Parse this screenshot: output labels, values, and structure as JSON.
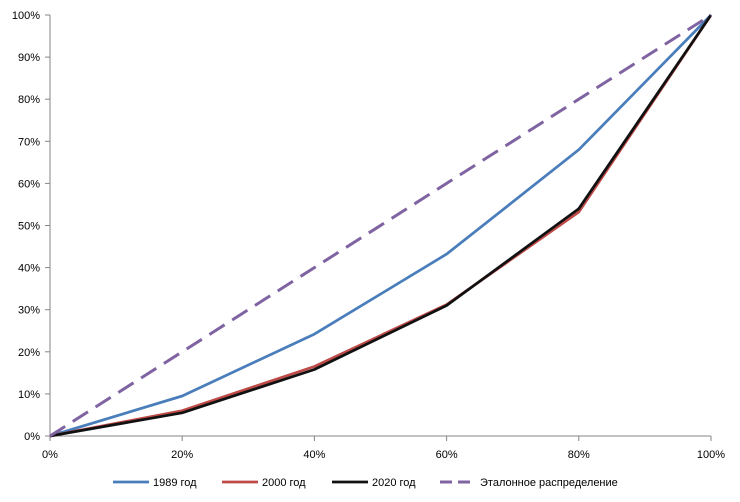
{
  "chart_data": {
    "type": "line",
    "title": "",
    "xlabel": "",
    "ylabel": "",
    "x": [
      0,
      20,
      40,
      60,
      80,
      100
    ],
    "x_tick_labels": [
      "0%",
      "20%",
      "40%",
      "60%",
      "80%",
      "100%"
    ],
    "y_tick_labels": [
      "0%",
      "10%",
      "20%",
      "30%",
      "40%",
      "50%",
      "60%",
      "70%",
      "80%",
      "90%",
      "100%"
    ],
    "xlim": [
      0,
      100
    ],
    "ylim": [
      0,
      100
    ],
    "grid": false,
    "legend_position": "bottom",
    "series": [
      {
        "name": "1989 год",
        "color": "#4a7ebb",
        "dash": "solid",
        "values": [
          0,
          9.5,
          24.2,
          43.2,
          68,
          100
        ]
      },
      {
        "name": "2000 год",
        "color": "#be4b48",
        "dash": "solid",
        "values": [
          0,
          6,
          16.5,
          31.2,
          53.2,
          100
        ]
      },
      {
        "name": "2020 год",
        "color": "#111111",
        "dash": "solid",
        "values": [
          0,
          5.5,
          15.8,
          31,
          54,
          100
        ]
      },
      {
        "name": "Эталонное распределение",
        "color": "#8064a2",
        "dash": "dashed",
        "values": [
          0,
          20,
          40,
          60,
          80,
          100
        ]
      }
    ]
  }
}
